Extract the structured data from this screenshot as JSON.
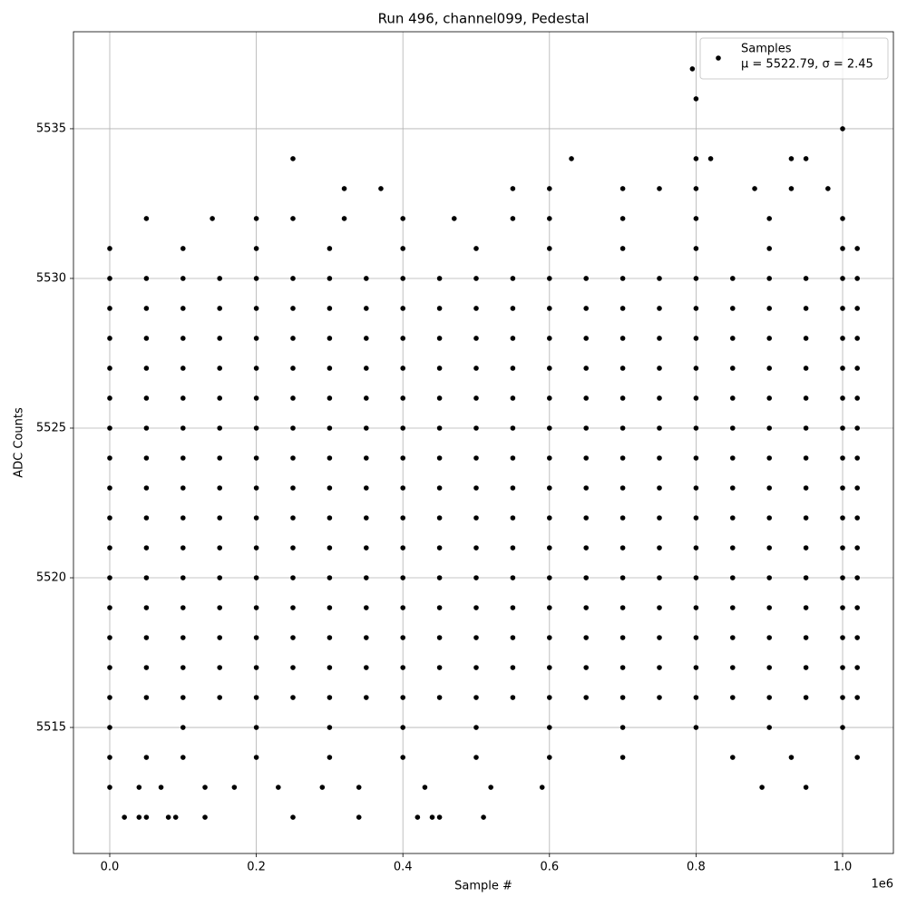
{
  "chart_data": {
    "type": "scatter",
    "title": "Run 496, channel099, Pedestal",
    "x_label": "Sample #",
    "y_label": "ADC Counts",
    "x_offset_label": "1e6",
    "xlim": [
      -0.0495,
      1.0693
    ],
    "ylim": [
      5510.79,
      5538.24
    ],
    "xticks": [
      {
        "value": 0,
        "label": "0.0"
      },
      {
        "value": 0.2,
        "label": "0.2"
      },
      {
        "value": 0.4,
        "label": "0.4"
      },
      {
        "value": 0.6,
        "label": "0.6"
      },
      {
        "value": 0.8,
        "label": "0.8"
      },
      {
        "value": 1,
        "label": "1.0"
      }
    ],
    "yticks": [
      5515,
      5520,
      5525,
      5530,
      5535
    ],
    "grid": true,
    "legend": "upper right",
    "series": [
      {
        "name": "Samples",
        "stats": "μ = 5522.79, σ = 2.45",
        "color": "#000000",
        "x": [
          0,
          0.05,
          0.1,
          0.15,
          0.2,
          0.25,
          0.3,
          0.35,
          0.4,
          0.45,
          0.5,
          0.55,
          0.6,
          0.65,
          0.7,
          0.75,
          0.8,
          0.85,
          0.9,
          0.95,
          1.0,
          1.02,
          0,
          0.05,
          0.1,
          0.15,
          0.2,
          0.25,
          0.3,
          0.35,
          0.4,
          0.45,
          0.5,
          0.55,
          0.6,
          0.65,
          0.7,
          0.75,
          0.8,
          0.85,
          0.9,
          0.95,
          1.0,
          1.02,
          0,
          0.05,
          0.1,
          0.15,
          0.2,
          0.25,
          0.3,
          0.35,
          0.4,
          0.45,
          0.5,
          0.55,
          0.6,
          0.65,
          0.7,
          0.75,
          0.8,
          0.85,
          0.9,
          0.95,
          1.0,
          1.02,
          0,
          0.05,
          0.1,
          0.15,
          0.2,
          0.25,
          0.3,
          0.35,
          0.4,
          0.45,
          0.5,
          0.55,
          0.6,
          0.65,
          0.7,
          0.75,
          0.8,
          0.85,
          0.9,
          0.95,
          1.0,
          1.02,
          0,
          0.05,
          0.1,
          0.15,
          0.2,
          0.25,
          0.3,
          0.35,
          0.4,
          0.45,
          0.5,
          0.55,
          0.6,
          0.65,
          0.7,
          0.75,
          0.8,
          0.85,
          0.9,
          0.95,
          1.0,
          1.02,
          0,
          0.05,
          0.1,
          0.15,
          0.2,
          0.25,
          0.3,
          0.35,
          0.4,
          0.45,
          0.5,
          0.55,
          0.6,
          0.65,
          0.7,
          0.75,
          0.8,
          0.85,
          0.9,
          0.95,
          1.0,
          1.02,
          0,
          0.05,
          0.1,
          0.15,
          0.2,
          0.25,
          0.3,
          0.35,
          0.4,
          0.45,
          0.5,
          0.55,
          0.6,
          0.65,
          0.7,
          0.75,
          0.8,
          0.85,
          0.9,
          0.95,
          1.0,
          1.02,
          0,
          0.05,
          0.1,
          0.15,
          0.2,
          0.25,
          0.3,
          0.35,
          0.4,
          0.45,
          0.5,
          0.55,
          0.6,
          0.65,
          0.7,
          0.75,
          0.8,
          0.85,
          0.9,
          0.95,
          1.0,
          1.02,
          0,
          0.05,
          0.1,
          0.15,
          0.2,
          0.25,
          0.3,
          0.35,
          0.4,
          0.45,
          0.5,
          0.55,
          0.6,
          0.65,
          0.7,
          0.75,
          0.8,
          0.85,
          0.9,
          0.95,
          1.0,
          1.02,
          0,
          0.05,
          0.1,
          0.15,
          0.2,
          0.25,
          0.3,
          0.35,
          0.4,
          0.45,
          0.5,
          0.55,
          0.6,
          0.65,
          0.7,
          0.75,
          0.8,
          0.85,
          0.9,
          0.95,
          1.0,
          1.02,
          0,
          0.05,
          0.1,
          0.15,
          0.2,
          0.25,
          0.3,
          0.35,
          0.4,
          0.45,
          0.5,
          0.55,
          0.6,
          0.65,
          0.7,
          0.75,
          0.8,
          0.85,
          0.9,
          0.95,
          1.0,
          1.02,
          0,
          0.05,
          0.1,
          0.15,
          0.2,
          0.25,
          0.3,
          0.35,
          0.4,
          0.45,
          0.5,
          0.55,
          0.6,
          0.65,
          0.7,
          0.75,
          0.8,
          0.85,
          0.9,
          0.95,
          1.0,
          1.02,
          0,
          0.05,
          0.1,
          0.15,
          0.2,
          0.25,
          0.3,
          0.35,
          0.4,
          0.45,
          0.5,
          0.55,
          0.6,
          0.65,
          0.7,
          0.75,
          0.8,
          0.85,
          0.9,
          0.95,
          1.0,
          1.02,
          0,
          0.05,
          0.1,
          0.15,
          0.2,
          0.25,
          0.3,
          0.35,
          0.4,
          0.45,
          0.5,
          0.55,
          0.6,
          0.65,
          0.7,
          0.75,
          0.8,
          0.85,
          0.9,
          0.95,
          1.0,
          1.02,
          0,
          0.05,
          0.1,
          0.15,
          0.2,
          0.25,
          0.3,
          0.35,
          0.4,
          0.45,
          0.5,
          0.55,
          0.6,
          0.65,
          0.7,
          0.75,
          0.8,
          0.85,
          0.9,
          0.95,
          1.0,
          1.02,
          0,
          0.1,
          0.2,
          0.3,
          0.4,
          0.5,
          0.6,
          0.7,
          0.8,
          0.9,
          1.0,
          1.02,
          0,
          0.1,
          0.2,
          0.3,
          0.4,
          0.5,
          0.6,
          0.7,
          0.8,
          0.9,
          1.0,
          0.05,
          0.14,
          0.2,
          0.25,
          0.32,
          0.4,
          0.47,
          0.55,
          0.6,
          0.7,
          0.8,
          0.9,
          1.0,
          0,
          0.05,
          0.1,
          0.2,
          0.3,
          0.4,
          0.5,
          0.6,
          0.7,
          0.85,
          0.93,
          1.02,
          0.32,
          0.37,
          0.55,
          0.6,
          0.7,
          0.75,
          0.8,
          0.88,
          0.93,
          0.98,
          0,
          0.04,
          0.07,
          0.13,
          0.17,
          0.23,
          0.29,
          0.34,
          0.43,
          0.52,
          0.59,
          0.89,
          0.95,
          0.02,
          0.04,
          0.05,
          0.08,
          0.09,
          0.13,
          0.25,
          0.34,
          0.42,
          0.44,
          0.45,
          0.51,
          0.25,
          0.63,
          0.8,
          0.82,
          0.93,
          0.95,
          1.0,
          0.8,
          0.795
        ],
        "values": [
          5516,
          5516,
          5516,
          5516,
          5516,
          5516,
          5516,
          5516,
          5516,
          5516,
          5516,
          5516,
          5516,
          5516,
          5516,
          5516,
          5516,
          5516,
          5516,
          5516,
          5516,
          5516,
          5517,
          5517,
          5517,
          5517,
          5517,
          5517,
          5517,
          5517,
          5517,
          5517,
          5517,
          5517,
          5517,
          5517,
          5517,
          5517,
          5517,
          5517,
          5517,
          5517,
          5517,
          5517,
          5518,
          5518,
          5518,
          5518,
          5518,
          5518,
          5518,
          5518,
          5518,
          5518,
          5518,
          5518,
          5518,
          5518,
          5518,
          5518,
          5518,
          5518,
          5518,
          5518,
          5518,
          5518,
          5519,
          5519,
          5519,
          5519,
          5519,
          5519,
          5519,
          5519,
          5519,
          5519,
          5519,
          5519,
          5519,
          5519,
          5519,
          5519,
          5519,
          5519,
          5519,
          5519,
          5519,
          5519,
          5520,
          5520,
          5520,
          5520,
          5520,
          5520,
          5520,
          5520,
          5520,
          5520,
          5520,
          5520,
          5520,
          5520,
          5520,
          5520,
          5520,
          5520,
          5520,
          5520,
          5520,
          5520,
          5521,
          5521,
          5521,
          5521,
          5521,
          5521,
          5521,
          5521,
          5521,
          5521,
          5521,
          5521,
          5521,
          5521,
          5521,
          5521,
          5521,
          5521,
          5521,
          5521,
          5521,
          5521,
          5522,
          5522,
          5522,
          5522,
          5522,
          5522,
          5522,
          5522,
          5522,
          5522,
          5522,
          5522,
          5522,
          5522,
          5522,
          5522,
          5522,
          5522,
          5522,
          5522,
          5522,
          5522,
          5523,
          5523,
          5523,
          5523,
          5523,
          5523,
          5523,
          5523,
          5523,
          5523,
          5523,
          5523,
          5523,
          5523,
          5523,
          5523,
          5523,
          5523,
          5523,
          5523,
          5523,
          5523,
          5524,
          5524,
          5524,
          5524,
          5524,
          5524,
          5524,
          5524,
          5524,
          5524,
          5524,
          5524,
          5524,
          5524,
          5524,
          5524,
          5524,
          5524,
          5524,
          5524,
          5524,
          5524,
          5525,
          5525,
          5525,
          5525,
          5525,
          5525,
          5525,
          5525,
          5525,
          5525,
          5525,
          5525,
          5525,
          5525,
          5525,
          5525,
          5525,
          5525,
          5525,
          5525,
          5525,
          5525,
          5526,
          5526,
          5526,
          5526,
          5526,
          5526,
          5526,
          5526,
          5526,
          5526,
          5526,
          5526,
          5526,
          5526,
          5526,
          5526,
          5526,
          5526,
          5526,
          5526,
          5526,
          5526,
          5527,
          5527,
          5527,
          5527,
          5527,
          5527,
          5527,
          5527,
          5527,
          5527,
          5527,
          5527,
          5527,
          5527,
          5527,
          5527,
          5527,
          5527,
          5527,
          5527,
          5527,
          5527,
          5528,
          5528,
          5528,
          5528,
          5528,
          5528,
          5528,
          5528,
          5528,
          5528,
          5528,
          5528,
          5528,
          5528,
          5528,
          5528,
          5528,
          5528,
          5528,
          5528,
          5528,
          5528,
          5529,
          5529,
          5529,
          5529,
          5529,
          5529,
          5529,
          5529,
          5529,
          5529,
          5529,
          5529,
          5529,
          5529,
          5529,
          5529,
          5529,
          5529,
          5529,
          5529,
          5529,
          5529,
          5530,
          5530,
          5530,
          5530,
          5530,
          5530,
          5530,
          5530,
          5530,
          5530,
          5530,
          5530,
          5530,
          5530,
          5530,
          5530,
          5530,
          5530,
          5530,
          5530,
          5530,
          5530,
          5531,
          5531,
          5531,
          5531,
          5531,
          5531,
          5531,
          5531,
          5531,
          5531,
          5531,
          5531,
          5515,
          5515,
          5515,
          5515,
          5515,
          5515,
          5515,
          5515,
          5515,
          5515,
          5515,
          5532,
          5532,
          5532,
          5532,
          5532,
          5532,
          5532,
          5532,
          5532,
          5532,
          5532,
          5532,
          5532,
          5514,
          5514,
          5514,
          5514,
          5514,
          5514,
          5514,
          5514,
          5514,
          5514,
          5514,
          5514,
          5533,
          5533,
          5533,
          5533,
          5533,
          5533,
          5533,
          5533,
          5533,
          5533,
          5513,
          5513,
          5513,
          5513,
          5513,
          5513,
          5513,
          5513,
          5513,
          5513,
          5513,
          5513,
          5513,
          5512,
          5512,
          5512,
          5512,
          5512,
          5512,
          5512,
          5512,
          5512,
          5512,
          5512,
          5512,
          5534,
          5534,
          5534,
          5534,
          5534,
          5534,
          5535,
          5536,
          5537
        ]
      }
    ]
  }
}
